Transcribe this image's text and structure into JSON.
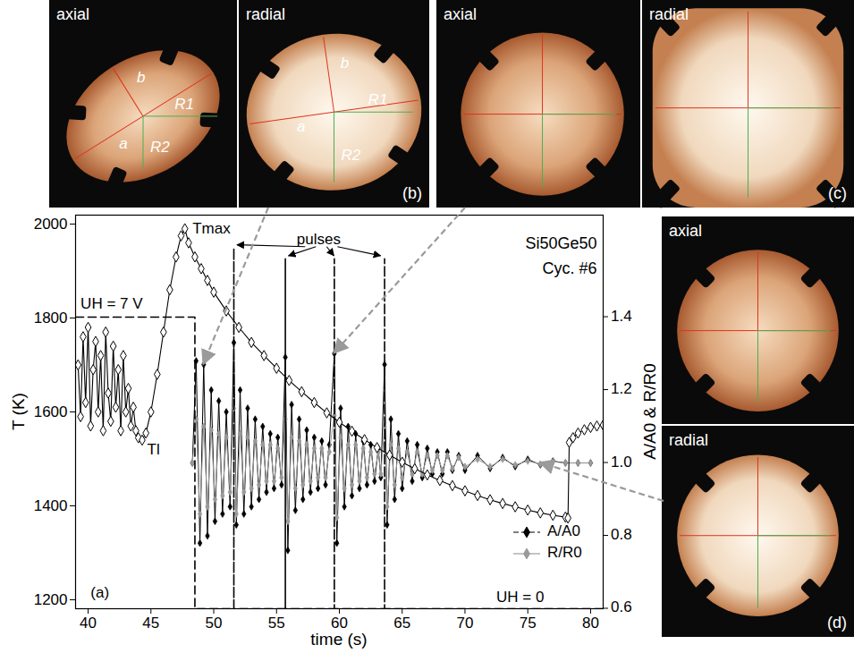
{
  "chart_data": {
    "type": "line",
    "xlabel": "time (s)",
    "ylabel": "T (K)",
    "y2label": "A/A0 & R/R0",
    "xlim": [
      39,
      81
    ],
    "xticks": [
      40,
      45,
      50,
      55,
      60,
      65,
      70,
      75,
      80
    ],
    "ylim": [
      1181,
      2019
    ],
    "yticks": [
      1200,
      1400,
      1600,
      1800,
      2000
    ],
    "y2lim": [
      0.6,
      1.68
    ],
    "y2ticks": [
      0.6,
      0.8,
      {
        "value": 1,
        "label": "1.0"
      },
      1.2,
      1.4
    ],
    "legend": "lower right",
    "x": [
      48.3,
      48.6,
      48.9,
      49.2,
      49.5,
      49.8,
      50.1,
      50.4,
      50.7,
      51.0,
      51.3,
      51.6,
      51.8,
      52.1,
      52.4,
      52.7,
      53.0,
      53.3,
      53.6,
      53.9,
      54.2,
      54.5,
      54.8,
      55.1,
      55.4,
      55.7,
      55.9,
      56.2,
      56.5,
      56.8,
      57.1,
      57.4,
      57.7,
      58.0,
      58.3,
      58.6,
      58.9,
      59.2,
      59.6,
      59.8,
      60.1,
      60.4,
      60.7,
      61.0,
      61.3,
      61.6,
      61.9,
      62.2,
      62.5,
      62.8,
      63.1,
      63.3,
      63.6,
      63.8,
      64.1,
      64.4,
      64.7,
      65.0,
      65.4,
      65.8,
      66.2,
      66.6,
      67.0,
      67.4,
      67.8,
      68.2,
      68.6,
      69.0,
      69.5,
      70.0,
      71,
      72,
      73,
      74,
      75,
      76,
      77,
      78,
      79,
      80
    ],
    "series": [
      {
        "name": "A/A0",
        "color": "#000000",
        "marker": "diamond",
        "axis": "y2",
        "values": [
          1.0,
          1.28,
          0.78,
          1.27,
          0.8,
          1.2,
          0.84,
          1.17,
          0.86,
          1.14,
          0.88,
          1.33,
          0.83,
          1.2,
          0.86,
          1.15,
          0.88,
          1.12,
          0.9,
          1.1,
          0.92,
          1.08,
          0.93,
          1.07,
          0.94,
          1.29,
          0.76,
          1.16,
          0.87,
          1.12,
          0.9,
          1.09,
          0.92,
          1.07,
          0.93,
          1.06,
          0.94,
          1.05,
          1.3,
          0.78,
          1.15,
          0.88,
          1.1,
          0.91,
          1.08,
          0.93,
          1.06,
          0.94,
          1.05,
          0.95,
          1.04,
          0.96,
          1.27,
          0.83,
          1.12,
          0.9,
          1.08,
          0.93,
          1.06,
          0.95,
          1.05,
          0.96,
          1.04,
          0.97,
          1.03,
          0.97,
          1.03,
          0.98,
          1.02,
          0.98,
          1.02,
          0.985,
          1.015,
          0.99,
          1.01,
          0.995,
          1.005,
          1.0,
          1.0,
          1.0
        ]
      },
      {
        "name": "R/R0",
        "color": "#9a9a9a",
        "marker": "diamond",
        "axis": "y2",
        "values": [
          1.0,
          1.12,
          0.86,
          1.1,
          0.88,
          1.09,
          0.9,
          1.08,
          0.91,
          1.07,
          0.92,
          1.15,
          0.86,
          1.08,
          0.92,
          1.07,
          0.93,
          1.06,
          0.94,
          1.05,
          0.95,
          1.05,
          0.95,
          1.04,
          0.96,
          1.12,
          0.84,
          1.07,
          0.93,
          1.06,
          0.94,
          1.05,
          0.95,
          1.04,
          0.96,
          1.04,
          0.96,
          1.03,
          1.13,
          0.85,
          1.07,
          0.93,
          1.05,
          0.94,
          1.05,
          0.95,
          1.04,
          0.96,
          1.03,
          0.97,
          1.03,
          0.97,
          1.1,
          0.88,
          1.05,
          0.94,
          1.04,
          0.96,
          1.03,
          0.97,
          1.03,
          0.97,
          1.02,
          0.98,
          1.02,
          0.98,
          1.02,
          0.985,
          1.015,
          0.99,
          1.01,
          0.99,
          1.01,
          0.995,
          1.005,
          0.997,
          1.003,
          1.0,
          1.0,
          1.0
        ]
      }
    ],
    "temperature": {
      "color": "#000000",
      "marker": "open diamond",
      "x": [
        39.2,
        39.4,
        39.6,
        39.8,
        40.0,
        40.2,
        40.4,
        40.6,
        40.8,
        41.0,
        41.2,
        41.4,
        41.6,
        41.8,
        42.0,
        42.2,
        42.4,
        42.6,
        42.8,
        43.0,
        43.2,
        43.4,
        43.6,
        43.8,
        44.0,
        44.3,
        44.6,
        45.0,
        45.5,
        46.0,
        46.5,
        47.0,
        47.4,
        47.7,
        48.0,
        48.5,
        49,
        49.5,
        50,
        51,
        52,
        53,
        54,
        55,
        56,
        57,
        58,
        59,
        60,
        61,
        62,
        63,
        64,
        65,
        66,
        67,
        68,
        69,
        70,
        71,
        72,
        73,
        74,
        75,
        76,
        77,
        78,
        78.2,
        78.3,
        78.6,
        79,
        79.5,
        80,
        80.5,
        81
      ],
      "values": [
        1700,
        1590,
        1760,
        1620,
        1780,
        1570,
        1690,
        1750,
        1600,
        1720,
        1560,
        1770,
        1640,
        1580,
        1740,
        1610,
        1690,
        1560,
        1720,
        1600,
        1650,
        1570,
        1610,
        1560,
        1545,
        1540,
        1555,
        1600,
        1680,
        1770,
        1860,
        1930,
        1975,
        1990,
        1960,
        1930,
        1905,
        1880,
        1855,
        1815,
        1780,
        1748,
        1720,
        1693,
        1667,
        1643,
        1620,
        1598,
        1578,
        1559,
        1541,
        1524,
        1508,
        1493,
        1479,
        1466,
        1454,
        1443,
        1432,
        1422,
        1413,
        1405,
        1398,
        1391,
        1385,
        1380,
        1376,
        1374,
        1535,
        1545,
        1555,
        1562,
        1567,
        1570,
        1572
      ]
    },
    "heater": {
      "color": "#000000",
      "line_style": "dashed",
      "axis": "y2",
      "x": [
        39,
        48.5,
        48.5,
        51.6,
        51.6,
        51.6,
        55.7,
        55.7,
        55.7,
        59.6,
        59.6,
        59.6,
        63.6,
        63.6,
        63.6,
        81
      ],
      "values": [
        1.4,
        1.4,
        0.6,
        0.6,
        1.59,
        0.6,
        0.6,
        1.56,
        0.6,
        0.6,
        1.56,
        0.6,
        0.6,
        1.56,
        0.6,
        0.6
      ]
    },
    "annotations": [
      {
        "text": "UH = 7 V",
        "x": 39.4,
        "y": 1830
      },
      {
        "text": "Tmax",
        "x": 48.3,
        "y": 1990
      },
      {
        "text": "Tl",
        "x": 44.7,
        "y": 1520
      },
      {
        "text": "Si50Ge50",
        "x": 80.5,
        "y": 1958
      },
      {
        "text": "Cyc. #6",
        "x": 80.5,
        "y": 1905
      },
      {
        "text": "UH = 0",
        "x": 72.5,
        "y": 1205
      },
      {
        "text": "(a)",
        "x": 40.2,
        "y": 1215
      }
    ],
    "pulse_label": {
      "text": "pulses",
      "x": 56.6,
      "y": 1968
    }
  },
  "panels": [
    {
      "label": "(b)",
      "time": 49.2,
      "value": 1.27,
      "views": [
        {
          "title": "axial",
          "labels": [
            "a",
            "b",
            "R1",
            "R2"
          ]
        },
        {
          "title": "radial",
          "labels": [
            "a",
            "b",
            "R1",
            "R2"
          ]
        }
      ]
    },
    {
      "label": "(c)",
      "time": 59.6,
      "value": 1.3,
      "views": [
        {
          "title": "axial"
        },
        {
          "title": "radial"
        }
      ]
    },
    {
      "label": "(d)",
      "time": 76,
      "value": 1.0,
      "views": [
        {
          "title": "axial"
        },
        {
          "title": "radial"
        }
      ]
    }
  ]
}
